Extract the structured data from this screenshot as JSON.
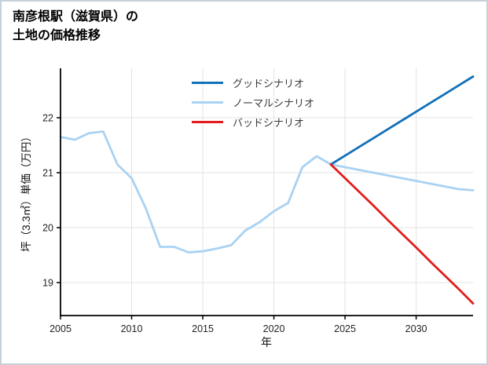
{
  "page": {
    "title_line1": "南彦根駅（滋賀県）の",
    "title_line2": "土地の価格推移"
  },
  "chart_data": {
    "type": "line",
    "title": "南彦根駅（滋賀県）の土地の価格推移",
    "xlabel": "年",
    "ylabel": "坪（3.3㎡）単価（万円）",
    "xlim": [
      2005,
      2034
    ],
    "ylim": [
      18.4,
      22.9
    ],
    "x_ticks": [
      2005,
      2010,
      2015,
      2020,
      2025,
      2030
    ],
    "y_ticks": [
      19,
      20,
      21,
      22
    ],
    "grid": true,
    "grid_color": "#e3e3e3",
    "axis_color": "#000000",
    "legend_position": "upper-center-inside",
    "draw_order": [
      1,
      0,
      2
    ],
    "series": [
      {
        "name": "グッドシナリオ",
        "color": "#1270b8",
        "x": [
          2024,
          2025,
          2026,
          2027,
          2028,
          2029,
          2030,
          2031,
          2032,
          2033,
          2034
        ],
        "y": [
          21.15,
          21.31,
          21.47,
          21.63,
          21.79,
          21.95,
          22.11,
          22.27,
          22.43,
          22.59,
          22.75
        ]
      },
      {
        "name": "ノーマルシナリオ",
        "color": "#a9d2f2",
        "x": [
          2005,
          2006,
          2007,
          2008,
          2009,
          2010,
          2011,
          2012,
          2013,
          2014,
          2015,
          2016,
          2017,
          2018,
          2019,
          2020,
          2021,
          2022,
          2023,
          2024,
          2025,
          2026,
          2027,
          2028,
          2029,
          2030,
          2031,
          2032,
          2033,
          2034
        ],
        "y": [
          21.65,
          21.6,
          21.72,
          21.75,
          21.15,
          20.9,
          20.35,
          19.65,
          19.65,
          19.55,
          19.57,
          19.62,
          19.68,
          19.95,
          20.1,
          20.3,
          20.45,
          21.1,
          21.3,
          21.15,
          21.1,
          21.05,
          21.0,
          20.95,
          20.9,
          20.85,
          20.8,
          20.75,
          20.7,
          20.68
        ]
      },
      {
        "name": "バッドシナリオ",
        "color": "#e21c1c",
        "x": [
          2024,
          2025,
          2026,
          2027,
          2028,
          2029,
          2030,
          2031,
          2032,
          2033,
          2034
        ],
        "y": [
          21.15,
          20.9,
          20.65,
          20.4,
          20.14,
          19.89,
          19.64,
          19.38,
          19.13,
          18.88,
          18.62
        ]
      }
    ]
  }
}
